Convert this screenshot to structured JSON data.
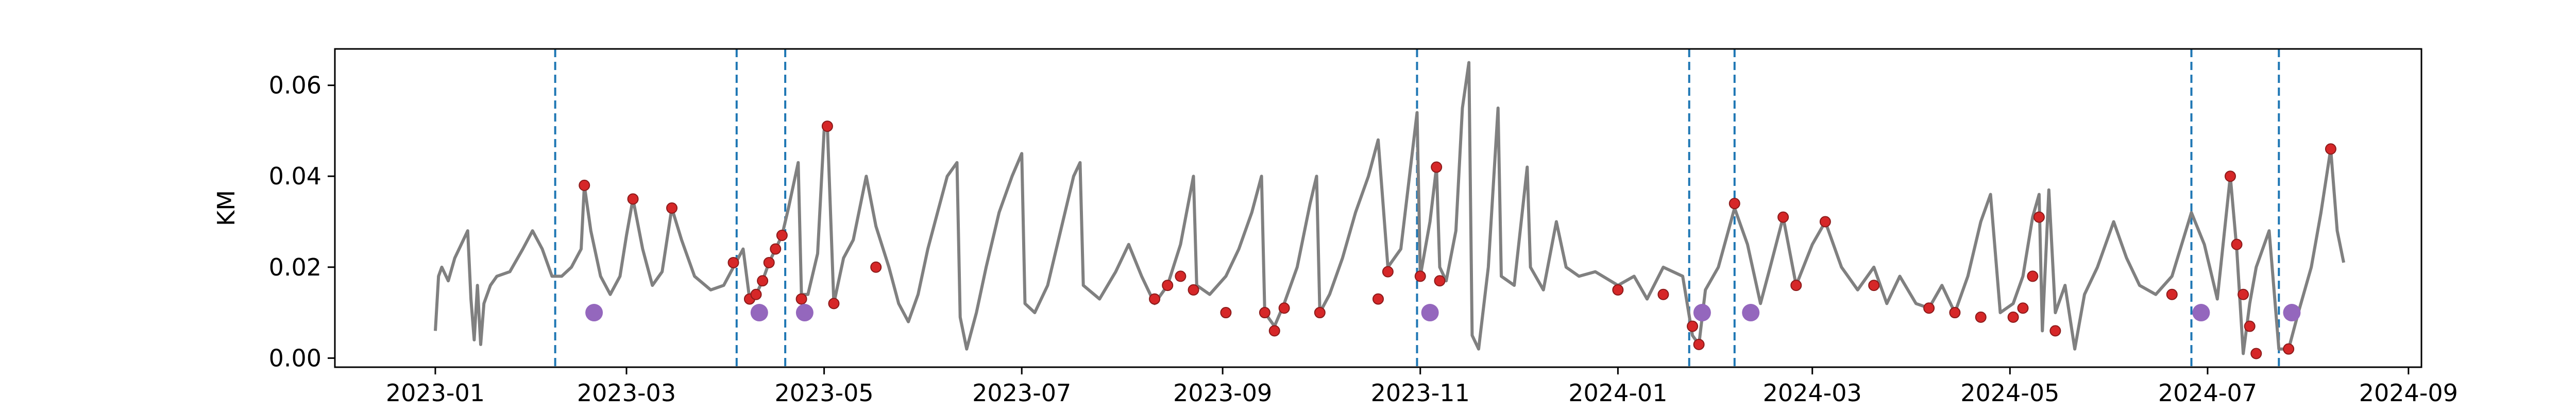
{
  "chart_data": {
    "type": "line",
    "title": "",
    "xlabel": "",
    "ylabel": "KM",
    "x_type": "date",
    "xlim": [
      "2022-12-01",
      "2024-09-05"
    ],
    "ylim": [
      -0.002,
      0.068
    ],
    "grid": false,
    "legend": "none",
    "x_ticks": [
      "2023-01",
      "2023-03",
      "2023-05",
      "2023-07",
      "2023-09",
      "2023-11",
      "2024-01",
      "2024-03",
      "2024-05",
      "2024-07",
      "2024-09"
    ],
    "x_tick_dates": [
      "2023-01-01",
      "2023-03-01",
      "2023-05-01",
      "2023-07-01",
      "2023-09-01",
      "2023-11-01",
      "2024-01-01",
      "2024-03-01",
      "2024-05-01",
      "2024-07-01",
      "2024-09-01"
    ],
    "y_ticks": [
      0.0,
      0.02,
      0.04,
      0.06
    ],
    "y_tick_labels": [
      "0.00",
      "0.02",
      "0.04",
      "0.06"
    ],
    "colors": {
      "line": "#808080",
      "marker": "#d62728",
      "marker_edge": "#8b1a1a",
      "anomaly": "#9467bd",
      "vline": "#1f77b4",
      "axis": "#000000"
    },
    "series": [
      {
        "values": [
          [
            "2023-01-01",
            0.006
          ],
          [
            "2023-01-02",
            0.018
          ],
          [
            "2023-01-03",
            0.02
          ],
          [
            "2023-01-05",
            0.017
          ],
          [
            "2023-01-07",
            0.022
          ],
          [
            "2023-01-09",
            0.025
          ],
          [
            "2023-01-11",
            0.028
          ],
          [
            "2023-01-12",
            0.013
          ],
          [
            "2023-01-13",
            0.004
          ],
          [
            "2023-01-14",
            0.016
          ],
          [
            "2023-01-15",
            0.003
          ],
          [
            "2023-01-16",
            0.012
          ],
          [
            "2023-01-18",
            0.016
          ],
          [
            "2023-01-20",
            0.018
          ],
          [
            "2023-01-24",
            0.019
          ],
          [
            "2023-01-28",
            0.024
          ],
          [
            "2023-01-31",
            0.028
          ],
          [
            "2023-02-03",
            0.024
          ],
          [
            "2023-02-06",
            0.018
          ],
          [
            "2023-02-09",
            0.018
          ],
          [
            "2023-02-12",
            0.02
          ],
          [
            "2023-02-15",
            0.024
          ],
          [
            "2023-02-16",
            0.038
          ],
          [
            "2023-02-18",
            0.028
          ],
          [
            "2023-02-21",
            0.018
          ],
          [
            "2023-02-24",
            0.014
          ],
          [
            "2023-02-27",
            0.018
          ],
          [
            "2023-03-01",
            0.027
          ],
          [
            "2023-03-03",
            0.035
          ],
          [
            "2023-03-06",
            0.024
          ],
          [
            "2023-03-09",
            0.016
          ],
          [
            "2023-03-12",
            0.019
          ],
          [
            "2023-03-15",
            0.033
          ],
          [
            "2023-03-18",
            0.026
          ],
          [
            "2023-03-22",
            0.018
          ],
          [
            "2023-03-27",
            0.015
          ],
          [
            "2023-03-31",
            0.016
          ],
          [
            "2023-04-03",
            0.02
          ],
          [
            "2023-04-06",
            0.024
          ],
          [
            "2023-04-08",
            0.013
          ],
          [
            "2023-04-10",
            0.014
          ],
          [
            "2023-04-12",
            0.017
          ],
          [
            "2023-04-14",
            0.021
          ],
          [
            "2023-04-16",
            0.024
          ],
          [
            "2023-04-18",
            0.027
          ],
          [
            "2023-04-20",
            0.033
          ],
          [
            "2023-04-23",
            0.043
          ],
          [
            "2023-04-24",
            0.014
          ],
          [
            "2023-04-26",
            0.014
          ],
          [
            "2023-04-29",
            0.023
          ],
          [
            "2023-05-01",
            0.05
          ],
          [
            "2023-05-02",
            0.051
          ],
          [
            "2023-05-04",
            0.012
          ],
          [
            "2023-05-07",
            0.022
          ],
          [
            "2023-05-10",
            0.026
          ],
          [
            "2023-05-14",
            0.04
          ],
          [
            "2023-05-17",
            0.029
          ],
          [
            "2023-05-21",
            0.02
          ],
          [
            "2023-05-24",
            0.012
          ],
          [
            "2023-05-27",
            0.008
          ],
          [
            "2023-05-30",
            0.014
          ],
          [
            "2023-06-02",
            0.024
          ],
          [
            "2023-06-05",
            0.032
          ],
          [
            "2023-06-08",
            0.04
          ],
          [
            "2023-06-11",
            0.043
          ],
          [
            "2023-06-12",
            0.009
          ],
          [
            "2023-06-14",
            0.002
          ],
          [
            "2023-06-17",
            0.01
          ],
          [
            "2023-06-20",
            0.02
          ],
          [
            "2023-06-24",
            0.032
          ],
          [
            "2023-06-28",
            0.04
          ],
          [
            "2023-07-01",
            0.045
          ],
          [
            "2023-07-02",
            0.012
          ],
          [
            "2023-07-05",
            0.01
          ],
          [
            "2023-07-09",
            0.016
          ],
          [
            "2023-07-13",
            0.028
          ],
          [
            "2023-07-17",
            0.04
          ],
          [
            "2023-07-19",
            0.043
          ],
          [
            "2023-07-20",
            0.016
          ],
          [
            "2023-07-25",
            0.013
          ],
          [
            "2023-07-30",
            0.019
          ],
          [
            "2023-08-03",
            0.025
          ],
          [
            "2023-08-07",
            0.018
          ],
          [
            "2023-08-11",
            0.012
          ],
          [
            "2023-08-15",
            0.016
          ],
          [
            "2023-08-19",
            0.025
          ],
          [
            "2023-08-23",
            0.04
          ],
          [
            "2023-08-24",
            0.016
          ],
          [
            "2023-08-28",
            0.014
          ],
          [
            "2023-09-02",
            0.018
          ],
          [
            "2023-09-06",
            0.024
          ],
          [
            "2023-09-10",
            0.032
          ],
          [
            "2023-09-13",
            0.04
          ],
          [
            "2023-09-14",
            0.01
          ],
          [
            "2023-09-17",
            0.007
          ],
          [
            "2023-09-20",
            0.012
          ],
          [
            "2023-09-24",
            0.02
          ],
          [
            "2023-09-28",
            0.034
          ],
          [
            "2023-09-30",
            0.04
          ],
          [
            "2023-10-01",
            0.01
          ],
          [
            "2023-10-04",
            0.014
          ],
          [
            "2023-10-08",
            0.022
          ],
          [
            "2023-10-12",
            0.032
          ],
          [
            "2023-10-16",
            0.04
          ],
          [
            "2023-10-19",
            0.048
          ],
          [
            "2023-10-22",
            0.02
          ],
          [
            "2023-10-26",
            0.024
          ],
          [
            "2023-10-31",
            0.054
          ],
          [
            "2023-11-01",
            0.018
          ],
          [
            "2023-11-04",
            0.03
          ],
          [
            "2023-11-06",
            0.042
          ],
          [
            "2023-11-07",
            0.02
          ],
          [
            "2023-11-09",
            0.017
          ],
          [
            "2023-11-12",
            0.028
          ],
          [
            "2023-11-14",
            0.055
          ],
          [
            "2023-11-16",
            0.065
          ],
          [
            "2023-11-17",
            0.005
          ],
          [
            "2023-11-19",
            0.002
          ],
          [
            "2023-11-22",
            0.02
          ],
          [
            "2023-11-25",
            0.055
          ],
          [
            "2023-11-26",
            0.018
          ],
          [
            "2023-11-30",
            0.016
          ],
          [
            "2023-12-04",
            0.042
          ],
          [
            "2023-12-05",
            0.02
          ],
          [
            "2023-12-09",
            0.015
          ],
          [
            "2023-12-13",
            0.03
          ],
          [
            "2023-12-16",
            0.02
          ],
          [
            "2023-12-20",
            0.018
          ],
          [
            "2023-12-25",
            0.019
          ],
          [
            "2024-01-01",
            0.016
          ],
          [
            "2024-01-06",
            0.018
          ],
          [
            "2024-01-10",
            0.013
          ],
          [
            "2024-01-15",
            0.02
          ],
          [
            "2024-01-21",
            0.018
          ],
          [
            "2024-01-24",
            0.005
          ],
          [
            "2024-01-26",
            0.003
          ],
          [
            "2024-01-28",
            0.015
          ],
          [
            "2024-02-01",
            0.02
          ],
          [
            "2024-02-06",
            0.033
          ],
          [
            "2024-02-10",
            0.025
          ],
          [
            "2024-02-14",
            0.012
          ],
          [
            "2024-02-17",
            0.02
          ],
          [
            "2024-02-21",
            0.031
          ],
          [
            "2024-02-25",
            0.016
          ],
          [
            "2024-03-01",
            0.025
          ],
          [
            "2024-03-05",
            0.03
          ],
          [
            "2024-03-10",
            0.02
          ],
          [
            "2024-03-15",
            0.015
          ],
          [
            "2024-03-20",
            0.02
          ],
          [
            "2024-03-24",
            0.012
          ],
          [
            "2024-03-28",
            0.018
          ],
          [
            "2024-04-02",
            0.012
          ],
          [
            "2024-04-06",
            0.011
          ],
          [
            "2024-04-10",
            0.016
          ],
          [
            "2024-04-14",
            0.01
          ],
          [
            "2024-04-18",
            0.018
          ],
          [
            "2024-04-22",
            0.03
          ],
          [
            "2024-04-25",
            0.036
          ],
          [
            "2024-04-28",
            0.01
          ],
          [
            "2024-05-02",
            0.012
          ],
          [
            "2024-05-05",
            0.018
          ],
          [
            "2024-05-08",
            0.031
          ],
          [
            "2024-05-10",
            0.036
          ],
          [
            "2024-05-11",
            0.006
          ],
          [
            "2024-05-13",
            0.037
          ],
          [
            "2024-05-15",
            0.01
          ],
          [
            "2024-05-18",
            0.016
          ],
          [
            "2024-05-21",
            0.002
          ],
          [
            "2024-05-24",
            0.014
          ],
          [
            "2024-05-28",
            0.02
          ],
          [
            "2024-06-02",
            0.03
          ],
          [
            "2024-06-06",
            0.022
          ],
          [
            "2024-06-10",
            0.016
          ],
          [
            "2024-06-15",
            0.014
          ],
          [
            "2024-06-20",
            0.018
          ],
          [
            "2024-06-26",
            0.032
          ],
          [
            "2024-06-30",
            0.025
          ],
          [
            "2024-07-04",
            0.013
          ],
          [
            "2024-07-08",
            0.04
          ],
          [
            "2024-07-10",
            0.024
          ],
          [
            "2024-07-12",
            0.001
          ],
          [
            "2024-07-14",
            0.012
          ],
          [
            "2024-07-16",
            0.02
          ],
          [
            "2024-07-20",
            0.028
          ],
          [
            "2024-07-23",
            0.002
          ],
          [
            "2024-07-26",
            0.002
          ],
          [
            "2024-07-29",
            0.01
          ],
          [
            "2024-08-02",
            0.02
          ],
          [
            "2024-08-05",
            0.032
          ],
          [
            "2024-08-08",
            0.046
          ],
          [
            "2024-08-10",
            0.028
          ],
          [
            "2024-08-12",
            0.021
          ]
        ]
      }
    ],
    "markers": [
      [
        "2023-02-16",
        0.038
      ],
      [
        "2023-03-03",
        0.035
      ],
      [
        "2023-03-15",
        0.033
      ],
      [
        "2023-04-03",
        0.021
      ],
      [
        "2023-04-08",
        0.013
      ],
      [
        "2023-04-10",
        0.014
      ],
      [
        "2023-04-12",
        0.017
      ],
      [
        "2023-04-14",
        0.021
      ],
      [
        "2023-04-16",
        0.024
      ],
      [
        "2023-04-18",
        0.027
      ],
      [
        "2023-04-24",
        0.013
      ],
      [
        "2023-05-02",
        0.051
      ],
      [
        "2023-05-04",
        0.012
      ],
      [
        "2023-05-17",
        0.02
      ],
      [
        "2023-08-11",
        0.013
      ],
      [
        "2023-08-15",
        0.016
      ],
      [
        "2023-08-19",
        0.018
      ],
      [
        "2023-08-23",
        0.015
      ],
      [
        "2023-09-02",
        0.01
      ],
      [
        "2023-09-14",
        0.01
      ],
      [
        "2023-09-17",
        0.006
      ],
      [
        "2023-09-20",
        0.011
      ],
      [
        "2023-10-01",
        0.01
      ],
      [
        "2023-10-19",
        0.013
      ],
      [
        "2023-10-22",
        0.019
      ],
      [
        "2023-11-01",
        0.018
      ],
      [
        "2023-11-06",
        0.042
      ],
      [
        "2023-11-07",
        0.017
      ],
      [
        "2024-01-01",
        0.015
      ],
      [
        "2024-01-15",
        0.014
      ],
      [
        "2024-01-24",
        0.007
      ],
      [
        "2024-01-26",
        0.003
      ],
      [
        "2024-02-06",
        0.034
      ],
      [
        "2024-02-21",
        0.031
      ],
      [
        "2024-02-25",
        0.016
      ],
      [
        "2024-03-05",
        0.03
      ],
      [
        "2024-03-20",
        0.016
      ],
      [
        "2024-04-06",
        0.011
      ],
      [
        "2024-04-14",
        0.01
      ],
      [
        "2024-04-22",
        0.009
      ],
      [
        "2024-05-02",
        0.009
      ],
      [
        "2024-05-05",
        0.011
      ],
      [
        "2024-05-08",
        0.018
      ],
      [
        "2024-05-10",
        0.031
      ],
      [
        "2024-05-15",
        0.006
      ],
      [
        "2024-06-20",
        0.014
      ],
      [
        "2024-07-08",
        0.04
      ],
      [
        "2024-07-10",
        0.025
      ],
      [
        "2024-07-12",
        0.014
      ],
      [
        "2024-07-14",
        0.007
      ],
      [
        "2024-07-16",
        0.001
      ],
      [
        "2024-07-26",
        0.002
      ],
      [
        "2024-08-08",
        0.046
      ]
    ],
    "anomaly_points": [
      [
        "2023-02-19",
        0.01
      ],
      [
        "2023-04-11",
        0.01
      ],
      [
        "2023-04-25",
        0.01
      ],
      [
        "2023-11-04",
        0.01
      ],
      [
        "2024-01-27",
        0.01
      ],
      [
        "2024-02-11",
        0.01
      ],
      [
        "2024-06-29",
        0.01
      ],
      [
        "2024-07-27",
        0.01
      ]
    ],
    "vlines": [
      "2023-02-07",
      "2023-04-04",
      "2023-04-19",
      "2023-10-31",
      "2024-01-23",
      "2024-02-06",
      "2024-06-26",
      "2024-07-23"
    ]
  }
}
